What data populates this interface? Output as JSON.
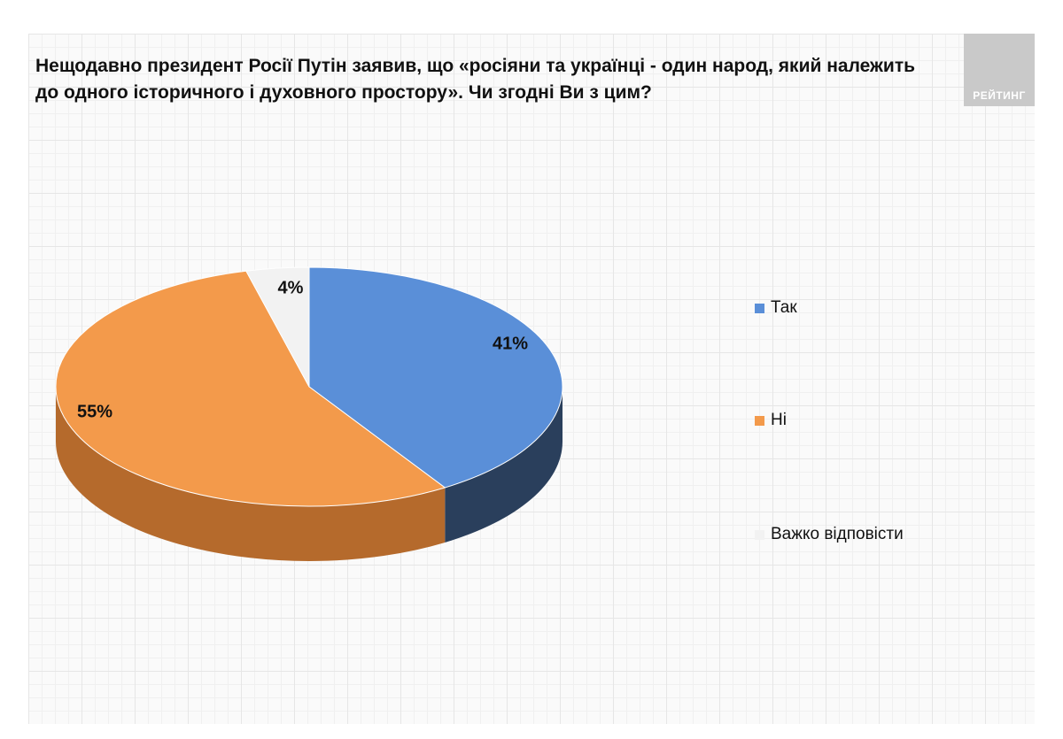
{
  "logo": {
    "text": "РЕЙТИНГ"
  },
  "chart_data": {
    "type": "pie",
    "title": "Нещодавно президент Росії Путін заявив, що «росіяни та українці - один народ, який належить до одного історичного і духовного простору». Чи згодні Ви з цим?",
    "slices": [
      {
        "label": "Так",
        "value": 41,
        "display": "41%",
        "color": "#5a8fd8",
        "side": "#2a3f5c"
      },
      {
        "label": "Ні",
        "value": 55,
        "display": "55%",
        "color": "#f39a4b",
        "side": "#b56a2c"
      },
      {
        "label": "Важко відповісти",
        "value": 4,
        "display": "4%",
        "color": "#f2f2f2",
        "side": "#cfcfcf"
      }
    ],
    "legend_position": "right"
  }
}
